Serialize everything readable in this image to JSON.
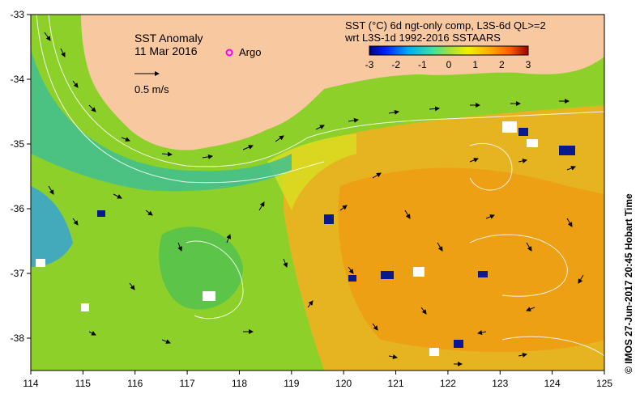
{
  "map": {
    "title": "SST Anomaly",
    "date": "11 Mar 2016",
    "argo_label": "Argo",
    "scale_label": "0.5 m/s",
    "colorbar_title_line1": "SST (°C) 6d ngt-only comp, L3S-6d QL>=2",
    "colorbar_title_line2": "wrt L3S-1d 1992-2016 SSTAARS",
    "colorbar_ticks": [
      "-3",
      "-2",
      "-1",
      "0",
      "1",
      "2",
      "3"
    ],
    "side_text": "©  IMOS 27-Jun-2017 20:45 Hobart Time",
    "lon_ticks": [
      "114",
      "115",
      "116",
      "117",
      "118",
      "119",
      "120",
      "121",
      "122",
      "123",
      "124",
      "125"
    ],
    "lat_ticks": [
      "-33",
      "-34",
      "-35",
      "-36",
      "-37",
      "-38"
    ],
    "colors": {
      "land": "#f8c8a0",
      "ocean_base": "#8ed02a",
      "argo_marker": "#ff00ff"
    }
  }
}
